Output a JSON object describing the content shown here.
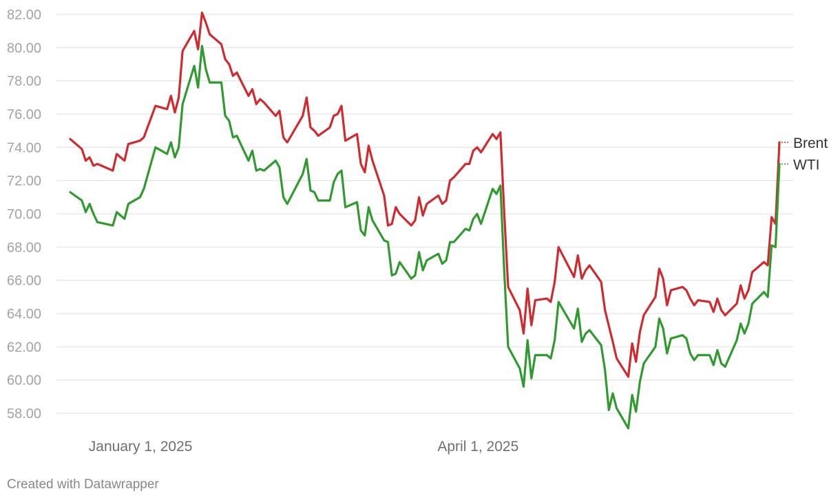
{
  "credit": "Created with Datawrapper",
  "chart_data": {
    "type": "line",
    "title": "",
    "xlabel": "",
    "ylabel": "",
    "ylim": [
      57,
      82.5
    ],
    "y_ticks": [
      58,
      60,
      62,
      64,
      66,
      68,
      70,
      72,
      74,
      76,
      78,
      80,
      82
    ],
    "y_tick_labels": [
      "58.00",
      "60.00",
      "62.00",
      "64.00",
      "66.00",
      "68.00",
      "70.00",
      "72.00",
      "74.00",
      "76.00",
      "78.00",
      "80.00",
      "82.00"
    ],
    "x_range": [
      "2024-12-18",
      "2025-06-24"
    ],
    "x_ticks": [
      {
        "date": "2025-01-01",
        "label": "January 1, 2025"
      },
      {
        "date": "2025-04-01",
        "label": "April 1, 2025"
      }
    ],
    "grid": true,
    "legend": "labels at line ends (right)",
    "series": [
      {
        "name": "Brent",
        "color": "#d02a2e",
        "points": [
          [
            "2024-12-18",
            74.5
          ],
          [
            "2024-12-21",
            73.9
          ],
          [
            "2024-12-22",
            73.2
          ],
          [
            "2024-12-23",
            73.4
          ],
          [
            "2024-12-24",
            72.9
          ],
          [
            "2024-12-25",
            73.0
          ],
          [
            "2024-12-29",
            72.6
          ],
          [
            "2024-12-30",
            73.6
          ],
          [
            "2025-01-01",
            73.2
          ],
          [
            "2025-01-02",
            74.2
          ],
          [
            "2025-01-05",
            74.4
          ],
          [
            "2025-01-06",
            74.6
          ],
          [
            "2025-01-09",
            76.5
          ],
          [
            "2025-01-12",
            76.3
          ],
          [
            "2025-01-13",
            77.1
          ],
          [
            "2025-01-14",
            76.1
          ],
          [
            "2025-01-15",
            77.0
          ],
          [
            "2025-01-16",
            79.8
          ],
          [
            "2025-01-19",
            81.0
          ],
          [
            "2025-01-20",
            79.9
          ],
          [
            "2025-01-21",
            82.1
          ],
          [
            "2025-01-22",
            81.5
          ],
          [
            "2025-01-23",
            80.8
          ],
          [
            "2025-01-26",
            80.2
          ],
          [
            "2025-01-27",
            79.3
          ],
          [
            "2025-01-28",
            79.0
          ],
          [
            "2025-01-29",
            78.3
          ],
          [
            "2025-01-30",
            78.5
          ],
          [
            "2025-02-02",
            77.1
          ],
          [
            "2025-02-03",
            77.5
          ],
          [
            "2025-02-04",
            76.6
          ],
          [
            "2025-02-05",
            76.9
          ],
          [
            "2025-02-06",
            76.7
          ],
          [
            "2025-02-09",
            75.9
          ],
          [
            "2025-02-10",
            76.2
          ],
          [
            "2025-02-11",
            74.6
          ],
          [
            "2025-02-12",
            74.3
          ],
          [
            "2025-02-16",
            75.9
          ],
          [
            "2025-02-17",
            77.0
          ],
          [
            "2025-02-18",
            75.2
          ],
          [
            "2025-02-19",
            75.0
          ],
          [
            "2025-02-20",
            74.7
          ],
          [
            "2025-02-23",
            75.2
          ],
          [
            "2025-02-24",
            75.9
          ],
          [
            "2025-02-25",
            76.0
          ],
          [
            "2025-02-26",
            76.5
          ],
          [
            "2025-02-27",
            74.4
          ],
          [
            "2025-03-02",
            74.8
          ],
          [
            "2025-03-03",
            73.0
          ],
          [
            "2025-03-04",
            72.5
          ],
          [
            "2025-03-05",
            74.1
          ],
          [
            "2025-03-06",
            73.2
          ],
          [
            "2025-03-09",
            71.1
          ],
          [
            "2025-03-10",
            69.3
          ],
          [
            "2025-03-11",
            69.4
          ],
          [
            "2025-03-12",
            70.4
          ],
          [
            "2025-03-13",
            70.0
          ],
          [
            "2025-03-16",
            69.3
          ],
          [
            "2025-03-17",
            69.6
          ],
          [
            "2025-03-18",
            71.0
          ],
          [
            "2025-03-19",
            69.9
          ],
          [
            "2025-03-20",
            70.6
          ],
          [
            "2025-03-23",
            71.1
          ],
          [
            "2025-03-24",
            70.6
          ],
          [
            "2025-03-25",
            70.8
          ],
          [
            "2025-03-26",
            72.0
          ],
          [
            "2025-03-27",
            72.2
          ],
          [
            "2025-03-30",
            73.0
          ],
          [
            "2025-03-31",
            73.0
          ],
          [
            "2025-04-01",
            73.8
          ],
          [
            "2025-04-02",
            74.0
          ],
          [
            "2025-04-03",
            73.7
          ],
          [
            "2025-04-06",
            74.8
          ],
          [
            "2025-04-07",
            74.5
          ],
          [
            "2025-04-08",
            74.9
          ],
          [
            "2025-04-09",
            70.0
          ],
          [
            "2025-04-10",
            65.6
          ],
          [
            "2025-04-13",
            64.2
          ],
          [
            "2025-04-14",
            62.8
          ],
          [
            "2025-04-15",
            65.5
          ],
          [
            "2025-04-16",
            63.3
          ],
          [
            "2025-04-17",
            64.8
          ],
          [
            "2025-04-20",
            64.9
          ],
          [
            "2025-04-21",
            64.7
          ],
          [
            "2025-04-22",
            65.9
          ],
          [
            "2025-04-23",
            68.0
          ],
          [
            "2025-04-27",
            66.2
          ],
          [
            "2025-04-28",
            67.5
          ],
          [
            "2025-04-29",
            66.1
          ],
          [
            "2025-04-30",
            66.6
          ],
          [
            "2025-05-01",
            66.9
          ],
          [
            "2025-05-04",
            65.9
          ],
          [
            "2025-05-05",
            64.2
          ],
          [
            "2025-05-07",
            62.3
          ],
          [
            "2025-05-08",
            61.3
          ],
          [
            "2025-05-11",
            60.2
          ],
          [
            "2025-05-12",
            62.2
          ],
          [
            "2025-05-13",
            61.1
          ],
          [
            "2025-05-14",
            62.9
          ],
          [
            "2025-05-15",
            63.9
          ],
          [
            "2025-05-18",
            65.0
          ],
          [
            "2025-05-19",
            66.7
          ],
          [
            "2025-05-20",
            66.1
          ],
          [
            "2025-05-21",
            64.5
          ],
          [
            "2025-05-22",
            65.4
          ],
          [
            "2025-05-25",
            65.6
          ],
          [
            "2025-05-26",
            65.4
          ],
          [
            "2025-05-27",
            64.9
          ],
          [
            "2025-05-28",
            64.5
          ],
          [
            "2025-05-29",
            64.8
          ],
          [
            "2025-06-01",
            64.7
          ],
          [
            "2025-06-02",
            64.1
          ],
          [
            "2025-06-03",
            64.9
          ],
          [
            "2025-06-04",
            64.2
          ],
          [
            "2025-06-05",
            63.9
          ],
          [
            "2025-06-08",
            64.6
          ],
          [
            "2025-06-09",
            65.7
          ],
          [
            "2025-06-10",
            64.9
          ],
          [
            "2025-06-11",
            65.4
          ],
          [
            "2025-06-12",
            66.5
          ],
          [
            "2025-06-15",
            67.1
          ],
          [
            "2025-06-16",
            66.9
          ],
          [
            "2025-06-17",
            69.8
          ],
          [
            "2025-06-18",
            69.4
          ],
          [
            "2025-06-19",
            74.3
          ]
        ]
      },
      {
        "name": "WTI",
        "color": "#2f9a2d",
        "points": [
          [
            "2024-12-18",
            71.3
          ],
          [
            "2024-12-21",
            70.8
          ],
          [
            "2024-12-22",
            70.1
          ],
          [
            "2024-12-23",
            70.6
          ],
          [
            "2024-12-24",
            70.0
          ],
          [
            "2024-12-25",
            69.5
          ],
          [
            "2024-12-29",
            69.3
          ],
          [
            "2024-12-30",
            70.1
          ],
          [
            "2025-01-01",
            69.7
          ],
          [
            "2025-01-02",
            70.6
          ],
          [
            "2025-01-05",
            71.0
          ],
          [
            "2025-01-06",
            71.5
          ],
          [
            "2025-01-09",
            74.0
          ],
          [
            "2025-01-12",
            73.6
          ],
          [
            "2025-01-13",
            74.3
          ],
          [
            "2025-01-14",
            73.4
          ],
          [
            "2025-01-15",
            74.0
          ],
          [
            "2025-01-16",
            76.6
          ],
          [
            "2025-01-19",
            78.9
          ],
          [
            "2025-01-20",
            77.6
          ],
          [
            "2025-01-21",
            80.1
          ],
          [
            "2025-01-22",
            78.7
          ],
          [
            "2025-01-23",
            77.9
          ],
          [
            "2025-01-26",
            77.9
          ],
          [
            "2025-01-27",
            75.9
          ],
          [
            "2025-01-28",
            75.6
          ],
          [
            "2025-01-29",
            74.6
          ],
          [
            "2025-01-30",
            74.7
          ],
          [
            "2025-02-02",
            73.2
          ],
          [
            "2025-02-03",
            73.8
          ],
          [
            "2025-02-04",
            72.6
          ],
          [
            "2025-02-05",
            72.7
          ],
          [
            "2025-02-06",
            72.6
          ],
          [
            "2025-02-09",
            73.2
          ],
          [
            "2025-02-10",
            72.8
          ],
          [
            "2025-02-11",
            71.0
          ],
          [
            "2025-02-12",
            70.6
          ],
          [
            "2025-02-16",
            72.4
          ],
          [
            "2025-02-17",
            73.3
          ],
          [
            "2025-02-18",
            71.4
          ],
          [
            "2025-02-19",
            71.3
          ],
          [
            "2025-02-20",
            70.8
          ],
          [
            "2025-02-23",
            70.8
          ],
          [
            "2025-02-24",
            71.9
          ],
          [
            "2025-02-25",
            72.4
          ],
          [
            "2025-02-26",
            72.6
          ],
          [
            "2025-02-27",
            70.4
          ],
          [
            "2025-03-02",
            70.7
          ],
          [
            "2025-03-03",
            69.0
          ],
          [
            "2025-03-04",
            68.7
          ],
          [
            "2025-03-05",
            70.4
          ],
          [
            "2025-03-06",
            69.6
          ],
          [
            "2025-03-09",
            68.4
          ],
          [
            "2025-03-10",
            68.3
          ],
          [
            "2025-03-11",
            66.3
          ],
          [
            "2025-03-12",
            66.4
          ],
          [
            "2025-03-13",
            67.1
          ],
          [
            "2025-03-16",
            66.1
          ],
          [
            "2025-03-17",
            66.3
          ],
          [
            "2025-03-18",
            67.7
          ],
          [
            "2025-03-19",
            66.6
          ],
          [
            "2025-03-20",
            67.2
          ],
          [
            "2025-03-23",
            67.6
          ],
          [
            "2025-03-24",
            67.0
          ],
          [
            "2025-03-25",
            67.2
          ],
          [
            "2025-03-26",
            68.3
          ],
          [
            "2025-03-27",
            68.3
          ],
          [
            "2025-03-30",
            69.1
          ],
          [
            "2025-03-31",
            69.0
          ],
          [
            "2025-04-01",
            69.7
          ],
          [
            "2025-04-02",
            70.0
          ],
          [
            "2025-04-03",
            69.4
          ],
          [
            "2025-04-06",
            71.5
          ],
          [
            "2025-04-07",
            71.2
          ],
          [
            "2025-04-08",
            71.7
          ],
          [
            "2025-04-09",
            66.5
          ],
          [
            "2025-04-10",
            62.0
          ],
          [
            "2025-04-13",
            60.7
          ],
          [
            "2025-04-14",
            59.6
          ],
          [
            "2025-04-15",
            62.4
          ],
          [
            "2025-04-16",
            60.1
          ],
          [
            "2025-04-17",
            61.5
          ],
          [
            "2025-04-20",
            61.5
          ],
          [
            "2025-04-21",
            61.3
          ],
          [
            "2025-04-22",
            62.4
          ],
          [
            "2025-04-23",
            64.7
          ],
          [
            "2025-04-27",
            63.1
          ],
          [
            "2025-04-28",
            64.3
          ],
          [
            "2025-04-29",
            62.3
          ],
          [
            "2025-04-30",
            62.8
          ],
          [
            "2025-05-01",
            63.0
          ],
          [
            "2025-05-04",
            62.1
          ],
          [
            "2025-05-05",
            60.6
          ],
          [
            "2025-05-06",
            58.2
          ],
          [
            "2025-05-07",
            59.2
          ],
          [
            "2025-05-08",
            58.3
          ],
          [
            "2025-05-11",
            57.1
          ],
          [
            "2025-05-12",
            59.1
          ],
          [
            "2025-05-13",
            58.1
          ],
          [
            "2025-05-14",
            59.9
          ],
          [
            "2025-05-15",
            61.0
          ],
          [
            "2025-05-18",
            62.0
          ],
          [
            "2025-05-19",
            63.7
          ],
          [
            "2025-05-20",
            63.1
          ],
          [
            "2025-05-21",
            61.6
          ],
          [
            "2025-05-22",
            62.5
          ],
          [
            "2025-05-25",
            62.7
          ],
          [
            "2025-05-26",
            62.5
          ],
          [
            "2025-05-27",
            61.6
          ],
          [
            "2025-05-28",
            61.2
          ],
          [
            "2025-05-29",
            61.5
          ],
          [
            "2025-06-01",
            61.5
          ],
          [
            "2025-06-02",
            60.9
          ],
          [
            "2025-06-03",
            61.8
          ],
          [
            "2025-06-04",
            61.0
          ],
          [
            "2025-06-05",
            60.8
          ],
          [
            "2025-06-08",
            62.4
          ],
          [
            "2025-06-09",
            63.4
          ],
          [
            "2025-06-10",
            62.8
          ],
          [
            "2025-06-11",
            63.4
          ],
          [
            "2025-06-12",
            64.6
          ],
          [
            "2025-06-15",
            65.3
          ],
          [
            "2025-06-16",
            65.0
          ],
          [
            "2025-06-17",
            68.1
          ],
          [
            "2025-06-18",
            68.0
          ],
          [
            "2025-06-19",
            73.0
          ]
        ]
      }
    ]
  }
}
